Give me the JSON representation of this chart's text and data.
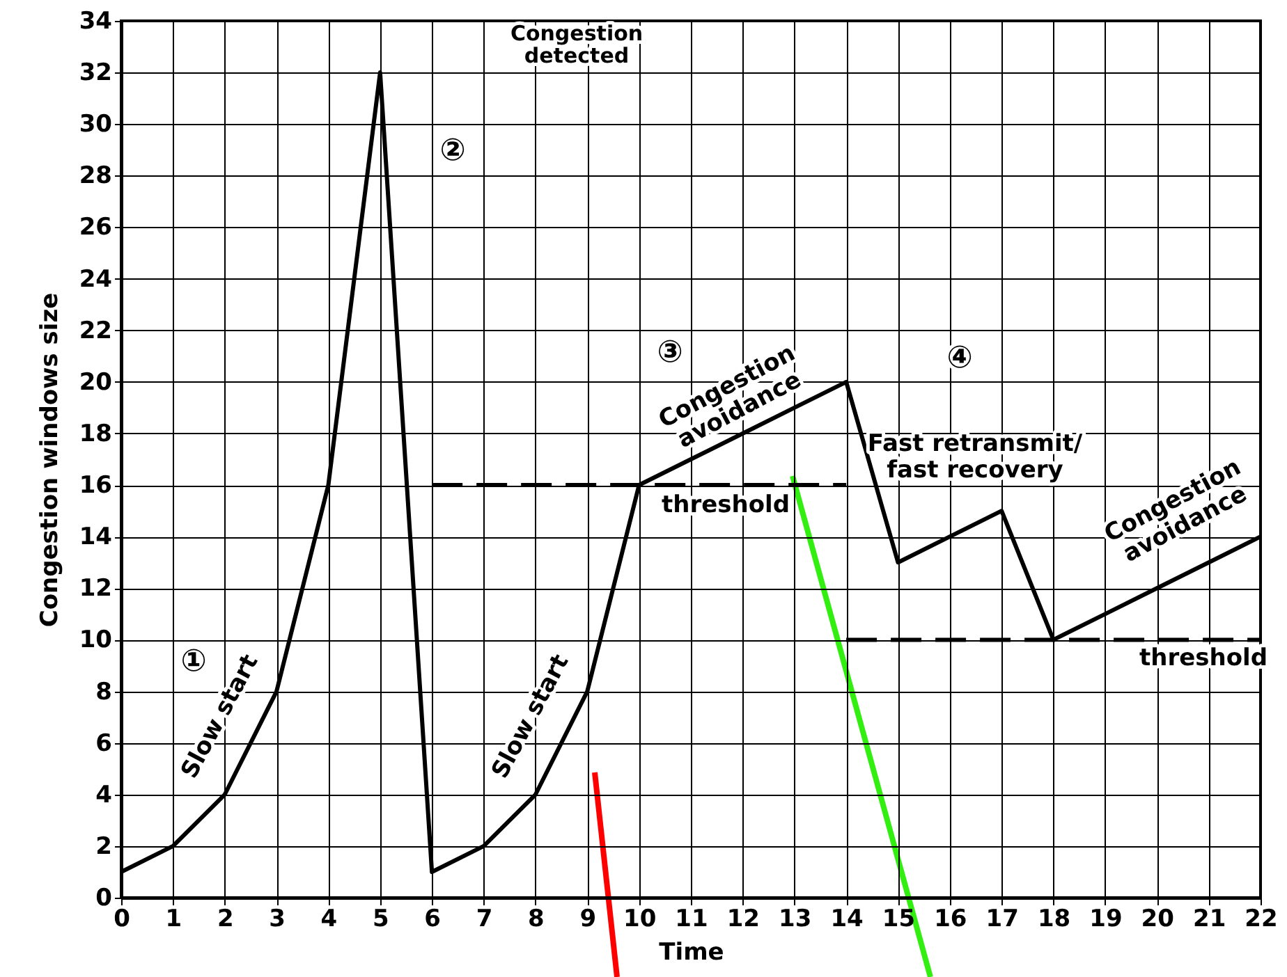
{
  "chart_data": {
    "type": "line",
    "xlabel": "Time",
    "ylabel": "Congestion windows size",
    "xlim": [
      0,
      22
    ],
    "ylim": [
      0,
      34
    ],
    "xticks": [
      0,
      1,
      2,
      3,
      4,
      5,
      6,
      7,
      8,
      9,
      10,
      11,
      12,
      13,
      14,
      15,
      16,
      17,
      18,
      19,
      20,
      21,
      22
    ],
    "yticks": [
      0,
      2,
      4,
      6,
      8,
      10,
      12,
      14,
      16,
      18,
      20,
      22,
      24,
      26,
      28,
      30,
      32,
      34
    ],
    "grid": true,
    "marker": "none",
    "x": [
      0,
      1,
      2,
      3,
      4,
      5,
      6,
      7,
      8,
      9,
      10,
      11,
      12,
      13,
      14,
      15,
      16,
      17,
      18,
      19,
      20,
      21,
      22
    ],
    "series": [
      {
        "color": "#000000",
        "values": [
          1,
          2,
          4,
          8,
          16,
          32,
          1,
          2,
          4,
          8,
          16,
          17,
          18,
          19,
          20,
          13,
          14,
          15,
          10,
          11,
          12,
          13,
          14
        ]
      },
      {
        "color": "#000000",
        "line_style": "dashed",
        "x": [
          6,
          14
        ],
        "values": [
          16,
          16
        ]
      },
      {
        "color": "#000000",
        "line_style": "dashed",
        "x": [
          14,
          22
        ],
        "values": [
          10,
          10
        ]
      }
    ],
    "annotations": [
      "Congestion\ndetected",
      "②",
      "①",
      "Slow start",
      "Slow start",
      "③",
      "Congestion\navoidance",
      "threshold",
      "④",
      "Fast retransmit/\nfast recovery",
      "Congestion\navoidance",
      "threshold"
    ]
  }
}
